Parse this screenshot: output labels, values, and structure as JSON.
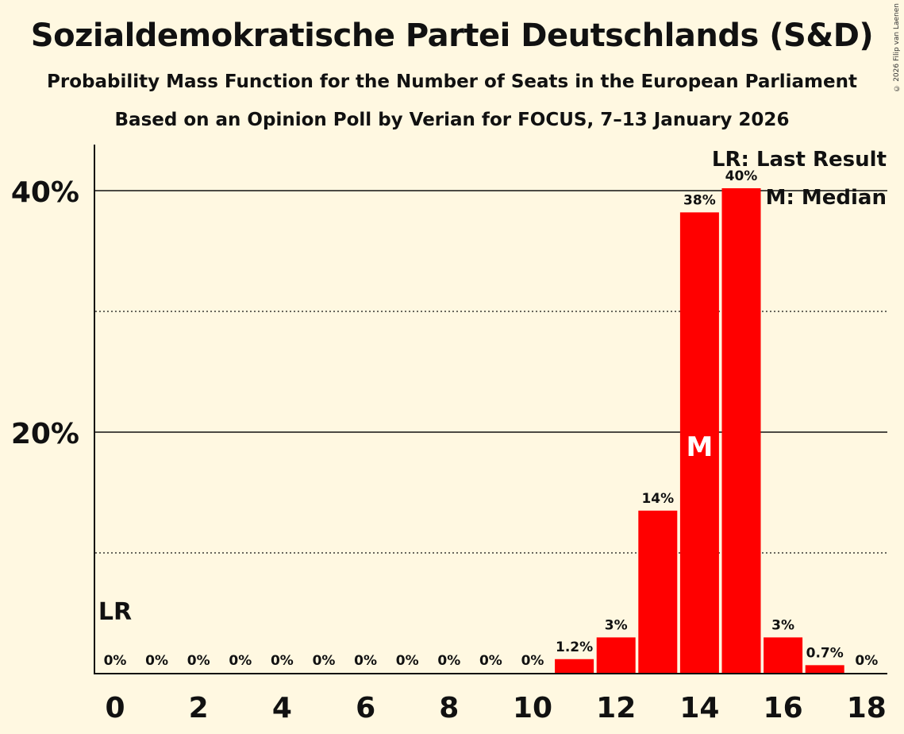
{
  "title": "Sozialdemokratische Partei Deutschlands (S&D)",
  "subtitle": "Probability Mass Function for the Number of Seats in the European Parliament",
  "subtitle2": "Based on an Opinion Poll by Verian for FOCUS, 7–13 January 2026",
  "copyright": "© 2026 Filip van Laenen",
  "colors": {
    "bar": "#FF0000",
    "background": "#FFF8E1"
  },
  "chart_data": {
    "type": "bar",
    "x": [
      0,
      1,
      2,
      3,
      4,
      5,
      6,
      7,
      8,
      9,
      10,
      11,
      12,
      13,
      14,
      15,
      16,
      17,
      18
    ],
    "values": [
      0,
      0,
      0,
      0,
      0,
      0,
      0,
      0,
      0,
      0,
      0,
      1.2,
      3,
      13.5,
      38.2,
      40.2,
      3,
      0.7,
      0
    ],
    "labels": [
      "0%",
      "0%",
      "0%",
      "0%",
      "0%",
      "0%",
      "0%",
      "0%",
      "0%",
      "0%",
      "0%",
      "1.2%",
      "3%",
      "14%",
      "38%",
      "40%",
      "3%",
      "0.7%",
      "0%"
    ],
    "xticks": [
      0,
      2,
      4,
      6,
      8,
      10,
      12,
      14,
      16,
      18
    ],
    "yticks": [
      20,
      40
    ],
    "ytick_labels": [
      "20%",
      "40%"
    ],
    "dotted_gridlines": [
      10,
      30
    ],
    "ylim": [
      0,
      44
    ],
    "last_result_seat": 0,
    "median_seat": 14,
    "lr_marker": "LR",
    "median_marker": "M",
    "legend": [
      "LR: Last Result",
      "M: Median"
    ],
    "legend_position": "top-right",
    "xlabel": "",
    "ylabel": ""
  }
}
